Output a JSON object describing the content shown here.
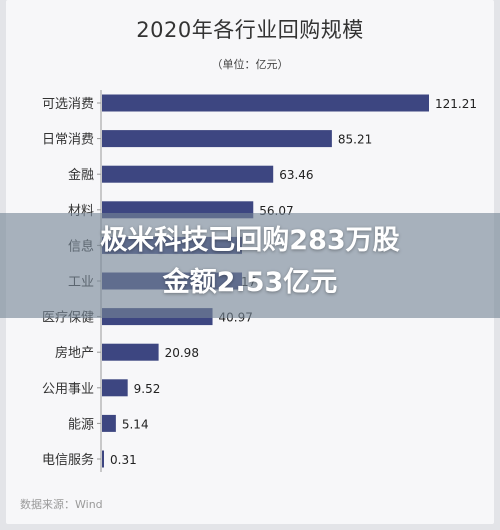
{
  "chart_data": {
    "type": "bar",
    "orientation": "horizontal",
    "title": "2020年各行业回购规模",
    "subtitle": "（单位：亿元）",
    "categories": [
      "可选消费",
      "日常消费",
      "金融",
      "材料",
      "信息",
      "工业",
      "医疗保健",
      "房地产",
      "公用事业",
      "能源",
      "电信服务"
    ],
    "values": [
      121.21,
      85.21,
      63.46,
      56.07,
      null,
      null,
      40.97,
      20.98,
      9.52,
      5.14,
      0.31
    ],
    "value_labels": [
      "121.21",
      "85.21",
      "63.46",
      "56.07",
      "",
      "17",
      "40.97",
      "20.98",
      "9.52",
      "5.14",
      "0.31"
    ],
    "xlim": [
      0,
      130
    ],
    "bar_color": "#3d4681",
    "grid": false,
    "legend": "none",
    "source": "数据来源：Wind"
  },
  "overlay": {
    "headline_line1": "极米科技已回购283万股",
    "headline_line2": "金额2.53亿元"
  }
}
